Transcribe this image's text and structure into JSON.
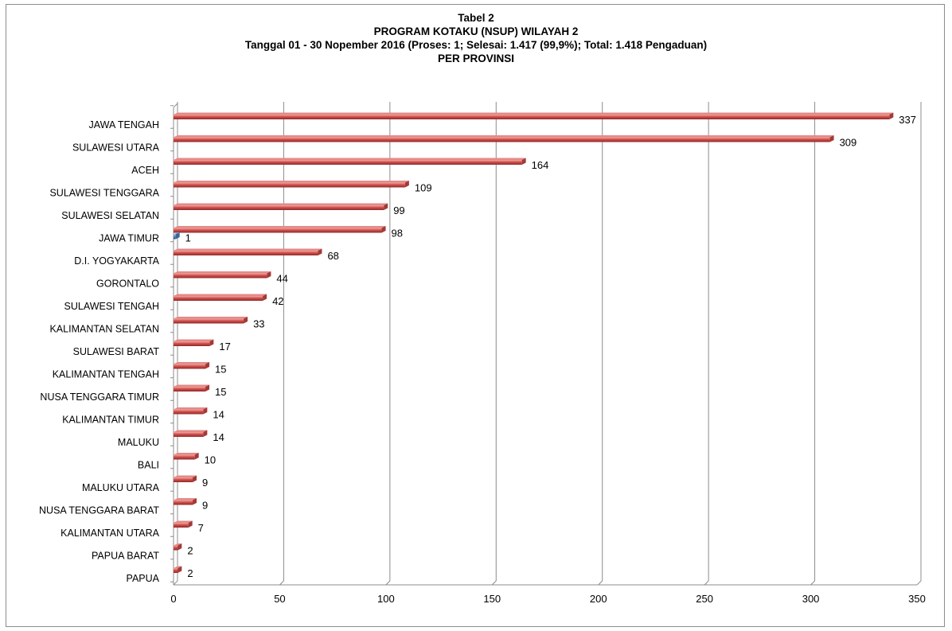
{
  "chart_data": {
    "type": "bar",
    "orientation": "horizontal",
    "title_lines": [
      "Tabel 2",
      "PROGRAM KOTAKU (NSUP) WILAYAH 2",
      "Tanggal 01 - 30 Nopember 2016 (Proses: 1; Selesai: 1.417 (99,9%); Total: 1.418 Pengaduan)",
      "PER PROVINSI"
    ],
    "categories": [
      "JAWA TENGAH",
      "SULAWESI UTARA",
      "ACEH",
      "SULAWESI TENGGARA",
      "SULAWESI SELATAN",
      "JAWA TIMUR",
      "D.I. YOGYAKARTA",
      "GORONTALO",
      "SULAWESI TENGAH",
      "KALIMANTAN SELATAN",
      "SULAWESI BARAT",
      "KALIMANTAN TENGAH",
      "NUSA TENGGARA  TIMUR",
      "KALIMANTAN TIMUR",
      "MALUKU",
      "BALI",
      "MALUKU UTARA",
      "NUSA TENGGARA  BARAT",
      "KALIMANTAN UTARA",
      "PAPUA BARAT",
      "PAPUA"
    ],
    "series": [
      {
        "key": "selesai",
        "color": "#c0504d",
        "values": [
          337,
          309,
          164,
          109,
          99,
          98,
          68,
          44,
          42,
          33,
          17,
          15,
          15,
          14,
          14,
          10,
          9,
          9,
          7,
          2,
          2
        ]
      },
      {
        "key": "proses",
        "color": "#4f81bd",
        "values": [
          0,
          0,
          0,
          0,
          0,
          1,
          0,
          0,
          0,
          0,
          0,
          0,
          0,
          0,
          0,
          0,
          0,
          0,
          0,
          0,
          0
        ]
      }
    ],
    "xlim": [
      0,
      350
    ],
    "xticks": [
      0,
      50,
      100,
      150,
      200,
      250,
      300,
      350
    ],
    "grid": true,
    "legend": "none",
    "style": "3d-cylinder"
  }
}
